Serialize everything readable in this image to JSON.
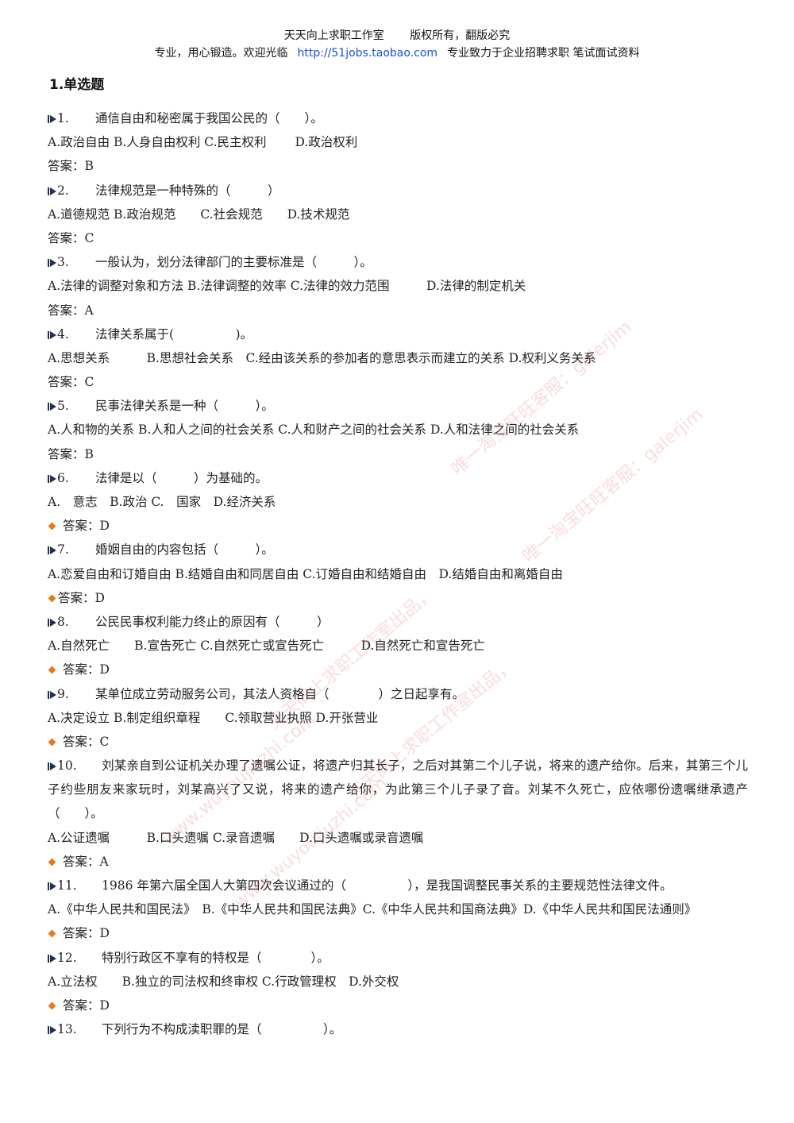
{
  "header": {
    "line1": [
      "天天向上求职工作室",
      "版权所有，翻版必究"
    ],
    "line2_prefix": "专业，用心锻造。欢迎光临",
    "line2_link": "http://51jobs.taobao.com",
    "line2_suffix": "专业致力于企业招聘求职  笔试面试资料"
  },
  "section_title": "1.单选题",
  "questions": [
    {
      "num": "1.",
      "text": "通信自由和秘密属于我国公民的（　　）。",
      "options": "A.政治自由 B.人身自由权利 C.民主权利　　 D.政治权利",
      "answer": "答案：B"
    },
    {
      "num": "2.",
      "text": "法律规范是一种特殊的（　　　）",
      "options": "A.道德规范 B.政治规范　　C.社会规范　　D.技术规范",
      "answer": "答案：C"
    },
    {
      "num": "3.",
      "text": "一般认为，划分法律部门的主要标准是（　　　）。",
      "options": "A.法律的调整对象和方法 B.法律调整的效率 C.法律的效力范围　　　D.法律的制定机关",
      "answer": "答案：A"
    },
    {
      "num": "4.",
      "text": "法律关系属于(　　　　　)。",
      "options": "A.思想关系　　　B.思想社会关系　C.经由该关系的参加者的意思表示而建立的关系 D.权利义务关系",
      "answer": "答案：C"
    },
    {
      "num": "5.",
      "text": "民事法律关系是一种（　　　）。",
      "options": "A.人和物的关系 B.人和人之间的社会关系 C.人和财产之间的社会关系 D.人和法律之间的社会关系",
      "answer": "答案：B"
    },
    {
      "num": "6.",
      "text": "法律是以（　　　）为基础的。",
      "options": "A.　意志　B.政治 C.　国家　D.经济关系",
      "answer": "答案：D",
      "answer_marker": true
    },
    {
      "num": "7.",
      "text": "婚姻自由的内容包括（　　　）。",
      "options": "A.恋爱自由和订婚自由 B.结婚自由和同居自由 C.订婚自由和结婚自由　D.结婚自由和离婚自由",
      "answer": "答案：D",
      "answer_marker": true,
      "tight": true
    },
    {
      "num": "8.",
      "text": "公民民事权利能力终止的原因有（　　　）",
      "options": "A.自然死亡　　B.宣告死亡 C.自然死亡或宣告死亡　　　D.自然死亡和宣告死亡",
      "answer": "答案：D",
      "answer_marker": true
    },
    {
      "num": "9.",
      "text": "某单位成立劳动服务公司，其法人资格自（　　　　）之日起享有。",
      "options": "A.决定设立 B.制定组织章程　　C.领取营业执照 D.开张营业",
      "answer": "答案：C",
      "answer_marker": true
    },
    {
      "num": "10.",
      "text": "刘某亲自到公证机关办理了遗嘱公证，将遗产归其长子，之后对其第二个儿子说，将来的遗产给你。后来，其第三个儿子约些朋友来家玩时，刘某高兴了又说，将来的遗产给你，为此第三个儿子录了音。刘某不久死亡，应依哪份遗嘱继承遗产（　　）。",
      "options": "A.公证遗嘱　　　B.口头遗嘱 C.录音遗嘱　　D.口头遗嘱或录音遗嘱",
      "answer": "答案：A",
      "answer_marker": true,
      "wrap_text": true
    },
    {
      "num": "11.",
      "text": "1986 年第六届全国人大第四次会议通过的（　　　　　），是我国调整民事关系的主要规范性法律文件。",
      "options": "A.《中华人民共和国民法》　B.《中华人民共和国民法典》C.《中华人民共和国商法典》D.《中华人民共和国民法通则》",
      "answer": "答案：D",
      "answer_marker": true,
      "wrap_options": true
    },
    {
      "num": "12.",
      "text": "特别行政区不享有的特权是（　　　　）。",
      "options": "A.立法权　　B.独立的司法权和终审权 C.行政管理权　D.外交权",
      "answer": "答案：D",
      "answer_marker": true
    },
    {
      "num": "13.",
      "text": "下列行为不构成渎职罪的是（　　　　　）。"
    }
  ],
  "watermark": {
    "shop": "唯一淘宝旺旺客服：galerjim",
    "studio": "天天向上求职工作室出品，",
    "site": "www.wuyoujiuzhi.com"
  },
  "colors": {
    "link": "#1a4fd8",
    "diamond": "#e57a1d",
    "marker": "#23314f",
    "watermark": "#dc3c3c"
  }
}
